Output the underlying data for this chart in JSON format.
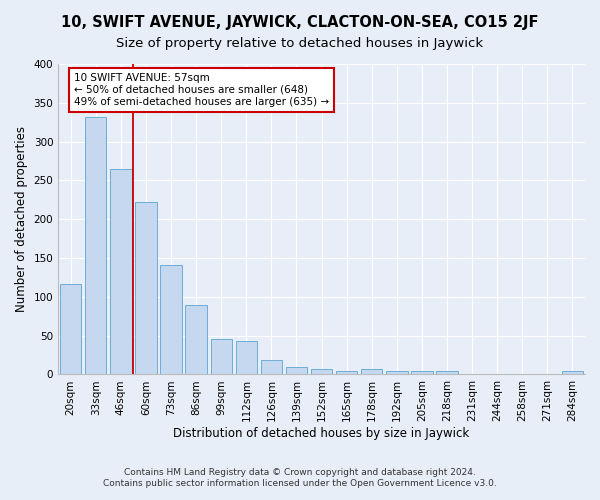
{
  "title": "10, SWIFT AVENUE, JAYWICK, CLACTON-ON-SEA, CO15 2JF",
  "subtitle": "Size of property relative to detached houses in Jaywick",
  "xlabel": "Distribution of detached houses by size in Jaywick",
  "ylabel": "Number of detached properties",
  "categories": [
    "20sqm",
    "33sqm",
    "46sqm",
    "60sqm",
    "73sqm",
    "86sqm",
    "99sqm",
    "112sqm",
    "126sqm",
    "139sqm",
    "152sqm",
    "165sqm",
    "178sqm",
    "192sqm",
    "205sqm",
    "218sqm",
    "231sqm",
    "244sqm",
    "258sqm",
    "271sqm",
    "284sqm"
  ],
  "values": [
    116,
    332,
    265,
    222,
    141,
    89,
    46,
    43,
    18,
    9,
    7,
    5,
    7,
    5,
    4,
    4,
    0,
    0,
    0,
    0,
    4
  ],
  "bar_color": "#c5d8f0",
  "bar_edgecolor": "#6baed6",
  "background_color": "#e8eef8",
  "annotation_text_line1": "10 SWIFT AVENUE: 57sqm",
  "annotation_text_line2": "← 50% of detached houses are smaller (648)",
  "annotation_text_line3": "49% of semi-detached houses are larger (635) →",
  "annotation_box_facecolor": "#ffffff",
  "annotation_box_edgecolor": "#cc0000",
  "vline_color": "#cc0000",
  "vline_x_index": 2.5,
  "ylim": [
    0,
    400
  ],
  "yticks": [
    0,
    50,
    100,
    150,
    200,
    250,
    300,
    350,
    400
  ],
  "footnote1": "Contains HM Land Registry data © Crown copyright and database right 2024.",
  "footnote2": "Contains public sector information licensed under the Open Government Licence v3.0.",
  "title_fontsize": 10.5,
  "subtitle_fontsize": 9.5,
  "axis_label_fontsize": 8.5,
  "tick_fontsize": 7.5,
  "annotation_fontsize": 7.5,
  "footnote_fontsize": 6.5
}
